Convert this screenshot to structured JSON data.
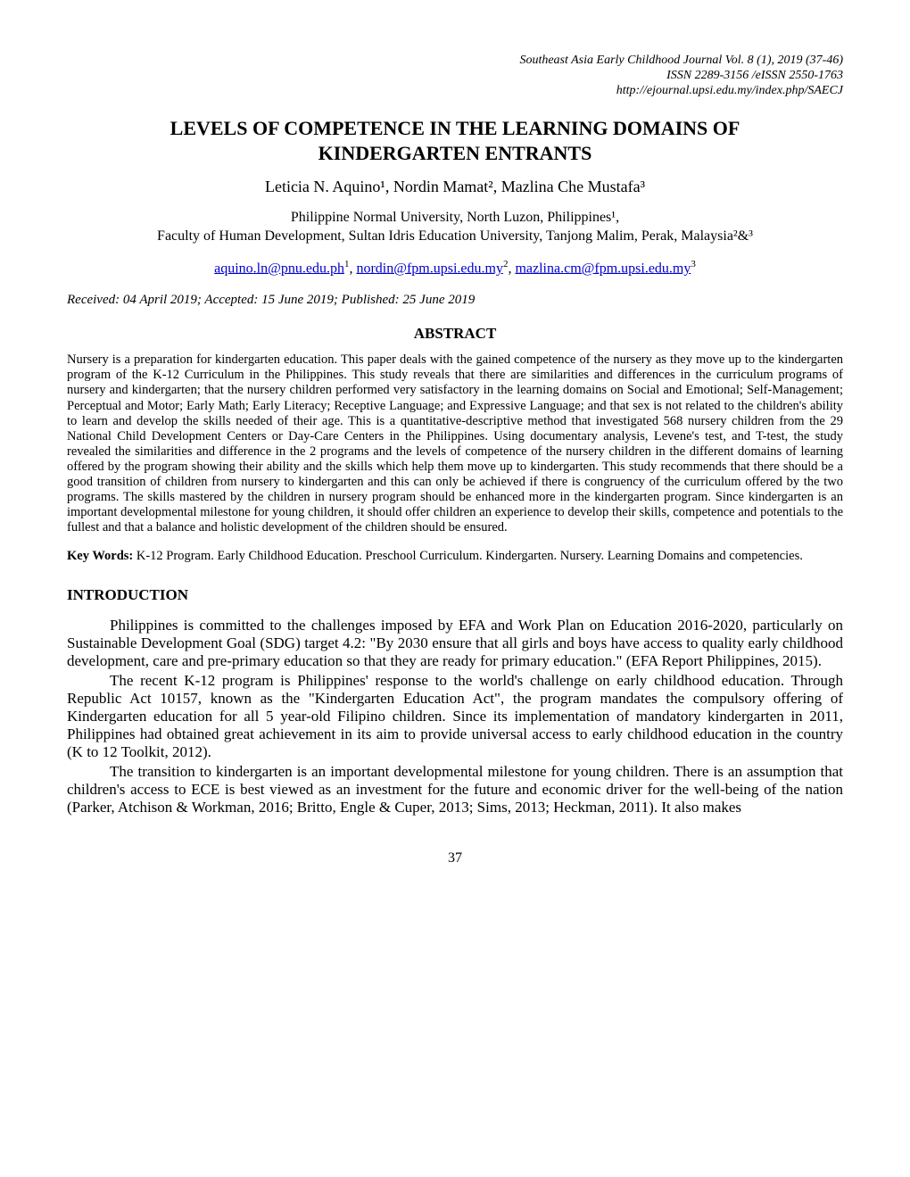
{
  "header": {
    "line1": "Southeast Asia Early Childhood Journal Vol. 8 (1), 2019 (37-46)",
    "line2": "ISSN 2289-3156 /eISSN 2550-1763",
    "line3": "http://ejournal.upsi.edu.my/index.php/SAECJ"
  },
  "title": {
    "line1": "LEVELS OF COMPETENCE IN THE LEARNING DOMAINS OF",
    "line2": "KINDERGARTEN ENTRANTS"
  },
  "authors": "Leticia N. Aquino¹, Nordin Mamat², Mazlina Che Mustafa³",
  "affiliations": {
    "line1": "Philippine Normal University, North Luzon, Philippines¹,",
    "line2": "Faculty of Human Development, Sultan Idris Education University, Tanjong Malim, Perak, Malaysia²&³"
  },
  "emails": {
    "e1": "aquino.ln@pnu.edu.ph",
    "e1_sup": "1",
    "sep1": ", ",
    "e2": "nordin@fpm.upsi.edu.my",
    "e2_sup": "2",
    "sep2": ", ",
    "e3": "mazlina.cm@fpm.upsi.edu.my",
    "e3_sup": "3"
  },
  "received": "Received: 04 April 2019; Accepted: 15 June 2019; Published: 25 June 2019",
  "abstract": {
    "heading": "ABSTRACT",
    "body": "Nursery is a preparation for kindergarten education. This paper deals with the gained competence of the nursery as they move up to the kindergarten program of the K-12 Curriculum in the Philippines. This study reveals that there are similarities and differences in the curriculum programs of nursery and kindergarten; that the nursery children performed very satisfactory in the learning domains on Social and Emotional; Self-Management; Perceptual and Motor; Early Math; Early Literacy; Receptive Language; and Expressive Language; and that sex is not related to the children's ability to learn and develop the skills needed of their age. This is a quantitative-descriptive method that investigated 568 nursery children from the 29 National Child Development Centers or Day-Care Centers in the Philippines. Using documentary analysis, Levene's test, and T-test, the study revealed the similarities and difference in the 2 programs and the levels of competence of the nursery children in the different domains of learning offered by the program showing their ability and the skills which help them move up to kindergarten. This study recommends that there should be a good transition of children from nursery to kindergarten and this can only be achieved if there is congruency of the curriculum offered by the two programs. The skills mastered by the children in nursery program should be enhanced more in the kindergarten program. Since kindergarten is an important developmental milestone for young children, it should offer children an experience to develop their skills, competence and potentials to the fullest and that a balance and holistic development of the children should be ensured."
  },
  "keywords": {
    "label": "Key Words:",
    "text": " K-12 Program. Early Childhood Education.  Preschool Curriculum. Kindergarten.  Nursery. Learning Domains and competencies."
  },
  "introduction": {
    "heading": "INTRODUCTION",
    "p1": "Philippines is committed to the challenges imposed by EFA and Work Plan on Education 2016-2020, particularly on Sustainable Development Goal (SDG) target 4.2: \"By 2030 ensure that all girls and boys have access to quality early childhood development, care and pre-primary education so that they are ready for primary education.\"  (EFA Report Philippines, 2015).",
    "p2": "The recent K-12 program is Philippines' response to the world's challenge on early childhood education. Through Republic Act 10157, known as the \"Kindergarten Education Act\", the program mandates the compulsory offering of Kindergarten education for all 5 year-old Filipino children. Since its implementation of mandatory kindergarten in 2011, Philippines had obtained great achievement in its aim to provide universal access to early childhood education in the country (K to 12 Toolkit, 2012).",
    "p3": "The transition to kindergarten is an important developmental milestone for young children. There is an assumption that children's access to ECE is best viewed as an investment for the future and economic driver for the well-being of the nation (Parker, Atchison & Workman, 2016; Britto, Engle & Cuper, 2013; Sims, 2013; Heckman, 2011). It also makes"
  },
  "page_number": "37",
  "colors": {
    "text": "#000000",
    "background": "#ffffff",
    "link": "#0000cc"
  },
  "typography": {
    "body_font": "Times New Roman",
    "title_fontsize": 22,
    "author_fontsize": 18,
    "affil_fontsize": 16,
    "abstract_fontsize": 14.5,
    "heading_fontsize": 17,
    "para_fontsize": 17,
    "header_fontsize": 14
  }
}
